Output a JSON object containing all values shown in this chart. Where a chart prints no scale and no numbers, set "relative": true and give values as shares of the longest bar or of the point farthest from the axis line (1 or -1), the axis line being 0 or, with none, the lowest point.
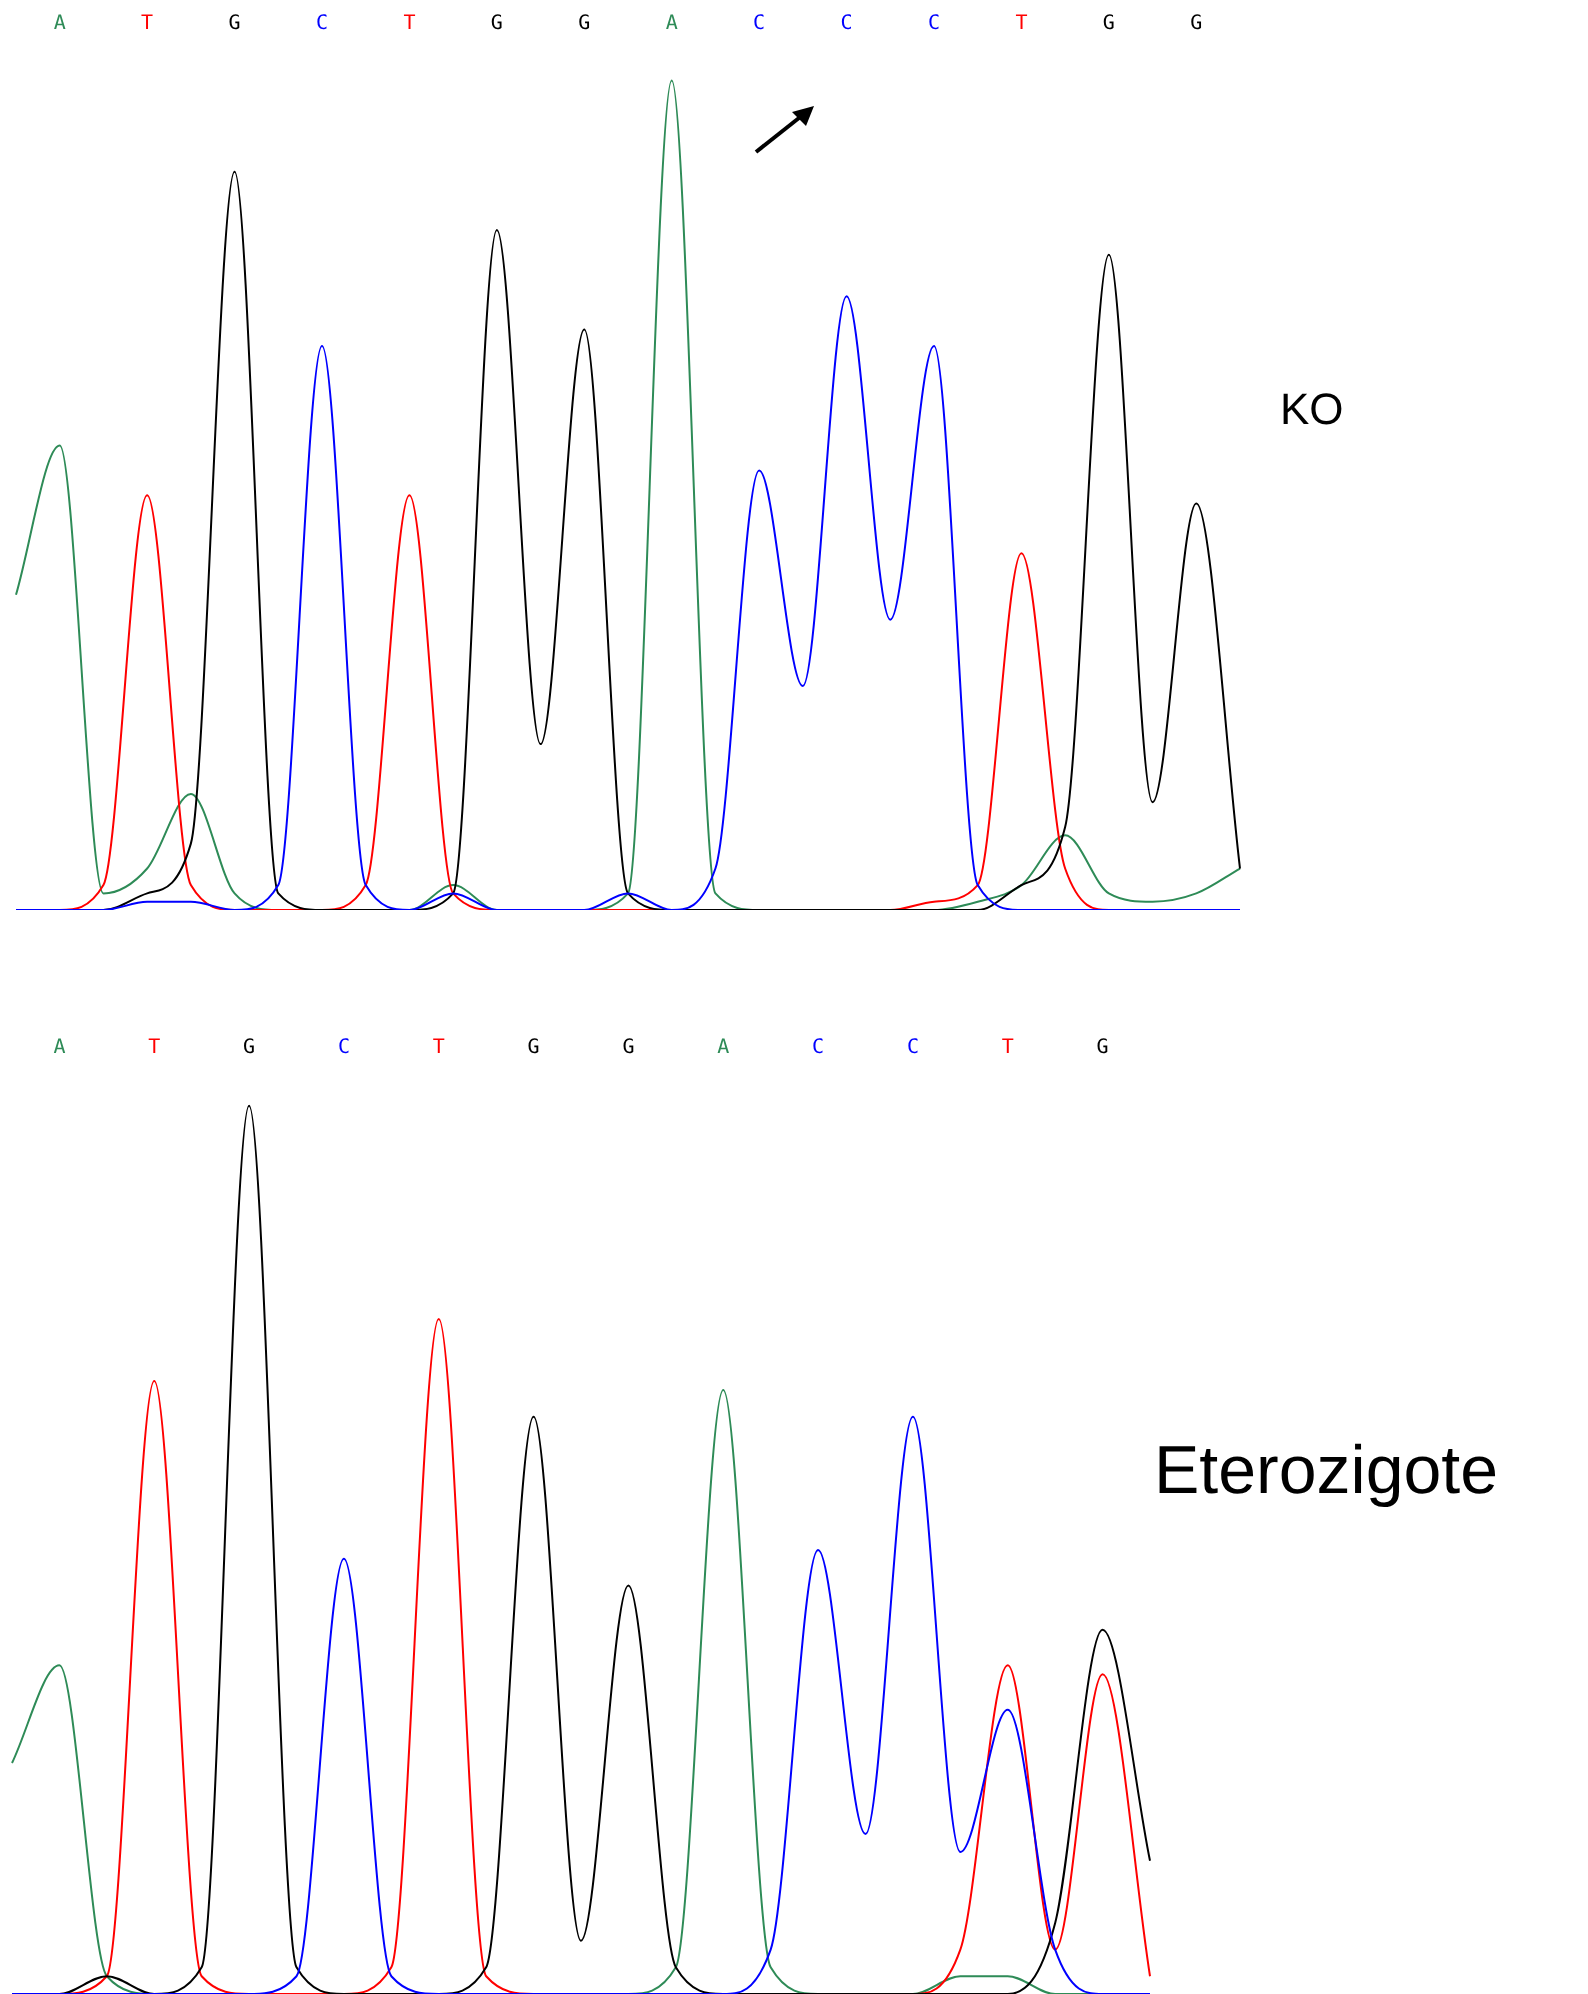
{
  "chart_data": [
    {
      "type": "line",
      "title": "KO",
      "relative": true,
      "categories": [
        null,
        "A",
        null,
        "T",
        null,
        "G",
        null,
        "C",
        null,
        "T",
        null,
        "G",
        null,
        "G",
        null,
        "A",
        null,
        "C",
        null,
        "C",
        null,
        "C",
        null,
        "T",
        null,
        "G",
        null,
        "G",
        null
      ],
      "series": [
        {
          "color": "#2e8b57",
          "values": [
            0.38,
            0.56,
            0.02,
            0.05,
            0.14,
            0.02,
            0,
            0,
            0,
            0,
            0.03,
            0,
            0,
            0,
            0.02,
            1.0,
            0.02,
            0,
            0,
            0,
            0,
            0,
            0.01,
            0.03,
            0.09,
            0.02,
            0.01,
            0.02,
            0.05
          ]
        },
        {
          "color": "#ff0000",
          "values": [
            0,
            0,
            0.03,
            0.5,
            0.03,
            0,
            0,
            0,
            0.03,
            0.5,
            0.02,
            0,
            0,
            0,
            0,
            0,
            0,
            0,
            0,
            0,
            0,
            0.01,
            0.03,
            0.43,
            0.05,
            0,
            0,
            null,
            null
          ]
        },
        {
          "color": "#000000",
          "values": [
            0,
            0,
            0,
            0.02,
            0.08,
            0.89,
            0.02,
            0,
            0,
            0,
            0.02,
            0.82,
            0.2,
            0.7,
            0.02,
            0,
            0,
            0,
            0,
            0,
            0,
            0,
            0,
            0.03,
            0.1,
            0.79,
            0.13,
            0.49,
            0.05
          ]
        },
        {
          "color": "#0000ff",
          "values": [
            0,
            0,
            0,
            0.01,
            0.01,
            0,
            0.03,
            0.68,
            0.03,
            0,
            0.02,
            0,
            0,
            0,
            0.02,
            0,
            0.05,
            0.53,
            0.27,
            0.74,
            0.35,
            0.68,
            0.03,
            0,
            0,
            0,
            0,
            0,
            0
          ]
        }
      ]
    },
    {
      "type": "line",
      "title": "Eterozigote",
      "relative": true,
      "categories": [
        null,
        "A",
        null,
        "T",
        null,
        "G",
        null,
        "C",
        null,
        "T",
        null,
        "G",
        null,
        "G",
        null,
        "A",
        null,
        "C",
        null,
        "C",
        null,
        "T",
        null,
        "G",
        null
      ],
      "series": [
        {
          "color": "#2e8b57",
          "values": [
            0.26,
            0.37,
            0.02,
            0,
            0,
            0,
            0,
            0,
            0,
            0,
            0,
            0,
            0,
            0,
            0.03,
            0.68,
            0.03,
            0,
            0,
            0,
            0.02,
            0.02,
            0,
            0,
            0
          ]
        },
        {
          "color": "#ff0000",
          "values": [
            0,
            0,
            0.02,
            0.69,
            0.02,
            0,
            0,
            0,
            0.03,
            0.76,
            0.02,
            0,
            0,
            0,
            0,
            0,
            0,
            0,
            0,
            0,
            0.05,
            0.37,
            0.05,
            0.36,
            0.02
          ]
        },
        {
          "color": "#000000",
          "values": [
            0,
            0,
            0.02,
            0,
            0.03,
            1.0,
            0.03,
            0,
            0,
            0,
            0.03,
            0.65,
            0.06,
            0.46,
            0.03,
            0,
            0,
            0,
            0,
            0,
            0,
            0,
            0.08,
            0.41,
            0.15
          ]
        },
        {
          "color": "#0000ff",
          "values": [
            0,
            0,
            0,
            0,
            0,
            0,
            0.02,
            0.49,
            0.02,
            0,
            0,
            0,
            0,
            0,
            0,
            0,
            0.05,
            0.5,
            0.18,
            0.65,
            0.16,
            0.32,
            0.05,
            0,
            0
          ]
        }
      ]
    }
  ]
}
